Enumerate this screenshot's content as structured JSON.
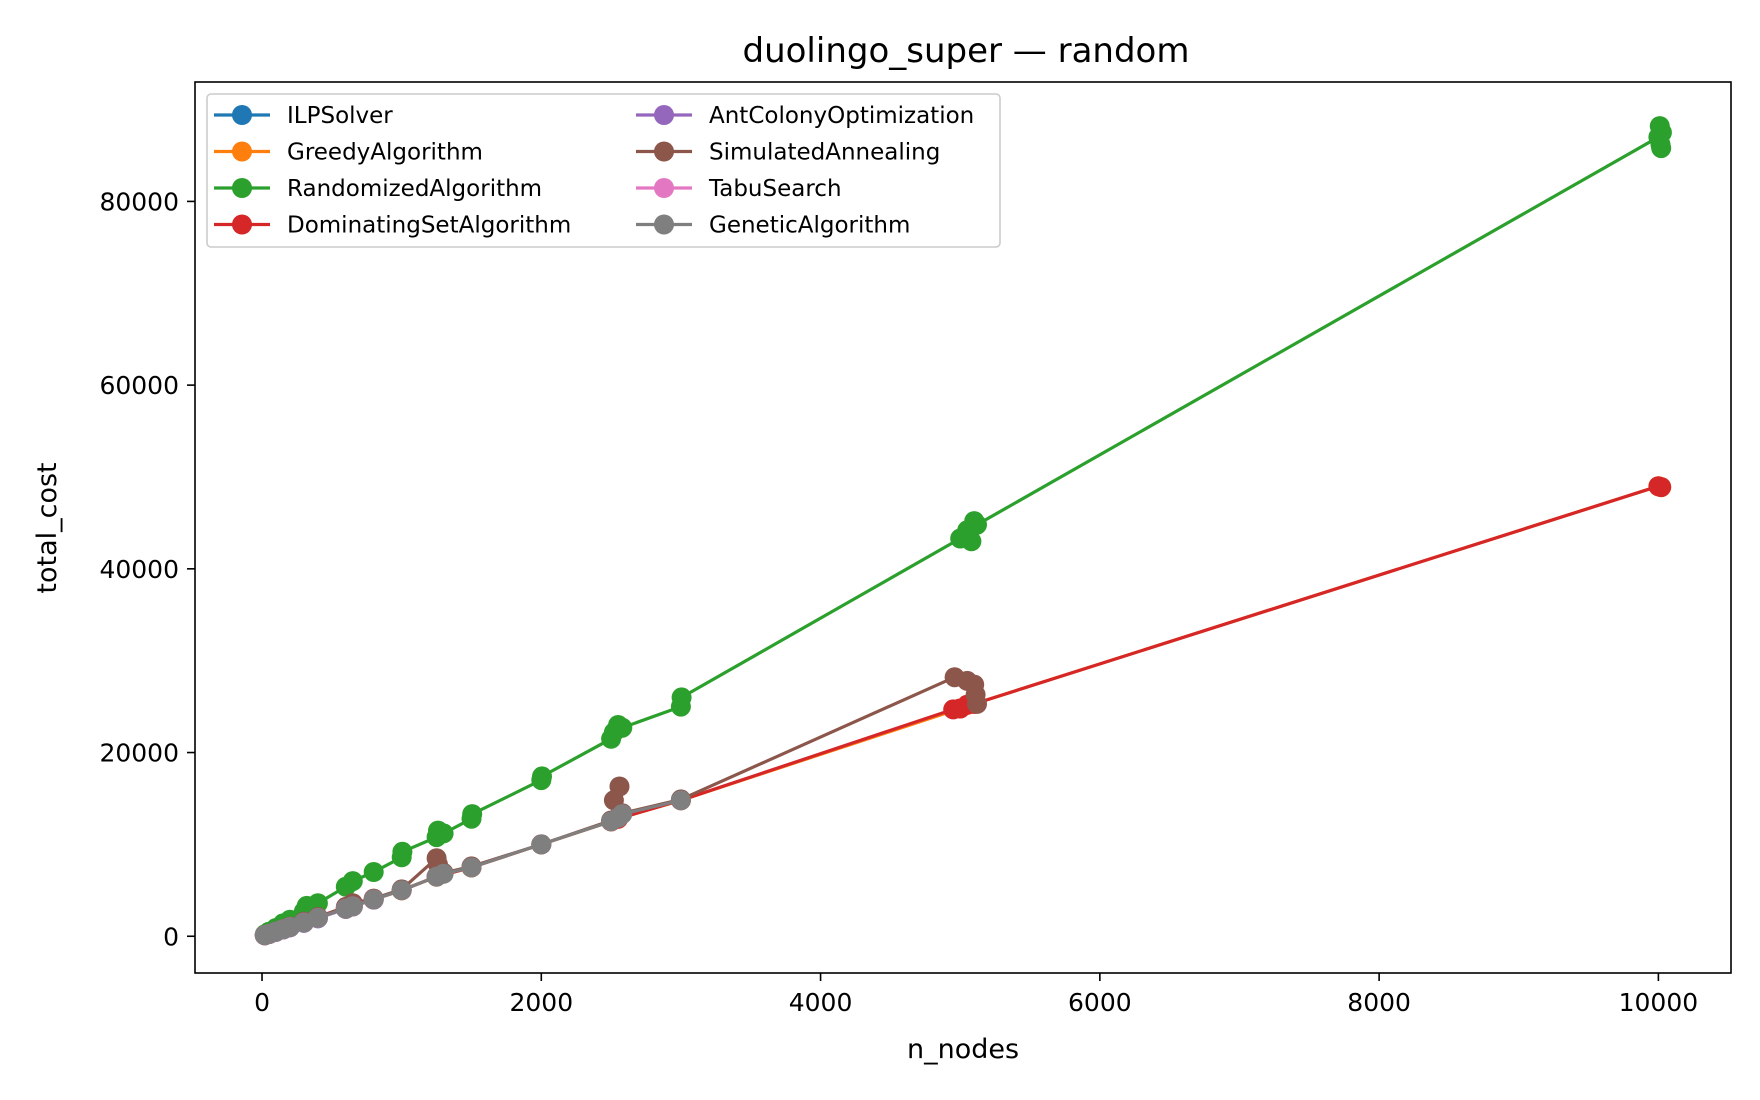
{
  "chart_data": {
    "type": "line",
    "title": "duolingo_super — random",
    "xlabel": "n_nodes",
    "ylabel": "total_cost",
    "xlim": [
      -480,
      10520
    ],
    "ylim": [
      -4000,
      93000
    ],
    "xticks": [
      0,
      2000,
      4000,
      6000,
      8000,
      10000
    ],
    "yticks": [
      0,
      20000,
      40000,
      60000,
      80000
    ],
    "xtick_labels": [
      "0",
      "2000",
      "4000",
      "6000",
      "8000",
      "10000"
    ],
    "ytick_labels": [
      "0",
      "20000",
      "40000",
      "60000",
      "80000"
    ],
    "grid": false,
    "legend_position": "top-left",
    "legend_columns": 2,
    "series": [
      {
        "name": "ILPSolver",
        "color": "#1f77b4",
        "points": [
          [
            20,
            100
          ],
          [
            50,
            250
          ],
          [
            100,
            500
          ],
          [
            150,
            740
          ],
          [
            200,
            990
          ],
          [
            300,
            1480
          ],
          [
            400,
            1970
          ]
        ]
      },
      {
        "name": "GreedyAlgorithm",
        "color": "#ff7f0e",
        "points": [
          [
            20,
            100
          ],
          [
            50,
            250
          ],
          [
            100,
            500
          ],
          [
            150,
            750
          ],
          [
            200,
            1000
          ],
          [
            300,
            1500
          ],
          [
            400,
            2000
          ],
          [
            600,
            3000
          ],
          [
            650,
            3250
          ],
          [
            800,
            4000
          ],
          [
            1000,
            5000
          ],
          [
            1250,
            6500
          ],
          [
            1500,
            7500
          ],
          [
            2000,
            10000
          ],
          [
            2500,
            12500
          ],
          [
            2550,
            12800
          ],
          [
            3000,
            14800
          ],
          [
            5000,
            24800
          ],
          [
            5050,
            25200
          ],
          [
            5100,
            25300
          ],
          [
            10000,
            49000
          ],
          [
            10020,
            48900
          ]
        ]
      },
      {
        "name": "RandomizedAlgorithm",
        "color": "#2ca02c",
        "points": [
          [
            20,
            200
          ],
          [
            50,
            500
          ],
          [
            100,
            900
          ],
          [
            150,
            1400
          ],
          [
            200,
            1800
          ],
          [
            300,
            2700
          ],
          [
            320,
            3300
          ],
          [
            400,
            3600
          ],
          [
            600,
            5400
          ],
          [
            650,
            6000
          ],
          [
            800,
            7000
          ],
          [
            1000,
            8600
          ],
          [
            1005,
            9200
          ],
          [
            1250,
            10800
          ],
          [
            1260,
            11500
          ],
          [
            1300,
            11200
          ],
          [
            1500,
            12800
          ],
          [
            1505,
            13300
          ],
          [
            2000,
            17000
          ],
          [
            2005,
            17400
          ],
          [
            2500,
            21500
          ],
          [
            2520,
            22200
          ],
          [
            2550,
            23000
          ],
          [
            2580,
            22700
          ],
          [
            3000,
            25000
          ],
          [
            3005,
            26000
          ],
          [
            5000,
            43300
          ],
          [
            5050,
            44200
          ],
          [
            5080,
            43000
          ],
          [
            5100,
            45200
          ],
          [
            5120,
            44800
          ],
          [
            10000,
            87000
          ],
          [
            10010,
            88200
          ],
          [
            10015,
            86200
          ],
          [
            10020,
            85800
          ],
          [
            10025,
            87500
          ]
        ]
      },
      {
        "name": "DominatingSetAlgorithm",
        "color": "#d62728",
        "points": [
          [
            20,
            100
          ],
          [
            50,
            250
          ],
          [
            100,
            500
          ],
          [
            150,
            750
          ],
          [
            200,
            1000
          ],
          [
            300,
            1500
          ],
          [
            400,
            2000
          ],
          [
            600,
            3000
          ],
          [
            650,
            3250
          ],
          [
            800,
            4000
          ],
          [
            1000,
            5000
          ],
          [
            1250,
            6500
          ],
          [
            1500,
            7500
          ],
          [
            2000,
            10000
          ],
          [
            2500,
            12500
          ],
          [
            2550,
            12800
          ],
          [
            3000,
            14800
          ],
          [
            4950,
            24700
          ],
          [
            5000,
            24800
          ],
          [
            5050,
            25200
          ],
          [
            5100,
            25300
          ],
          [
            10000,
            49000
          ],
          [
            10020,
            48900
          ]
        ]
      },
      {
        "name": "AntColonyOptimization",
        "color": "#9467bd",
        "points": [
          [
            20,
            100
          ],
          [
            50,
            250
          ],
          [
            100,
            500
          ],
          [
            150,
            740
          ],
          [
            200,
            990
          ],
          [
            300,
            1480
          ],
          [
            400,
            1970
          ],
          [
            600,
            2980
          ],
          [
            650,
            3240
          ],
          [
            800,
            3990
          ]
        ]
      },
      {
        "name": "SimulatedAnnealing",
        "color": "#8c564b",
        "points": [
          [
            20,
            110
          ],
          [
            50,
            260
          ],
          [
            100,
            520
          ],
          [
            150,
            780
          ],
          [
            200,
            1050
          ],
          [
            300,
            1600
          ],
          [
            400,
            2100
          ],
          [
            600,
            3200
          ],
          [
            650,
            3600
          ],
          [
            800,
            4100
          ],
          [
            1000,
            5100
          ],
          [
            1250,
            8500
          ],
          [
            1260,
            7800
          ],
          [
            1300,
            6900
          ],
          [
            1500,
            7600
          ],
          [
            2000,
            10000
          ],
          [
            2500,
            12600
          ],
          [
            2520,
            14800
          ],
          [
            2560,
            16300
          ],
          [
            2580,
            13400
          ],
          [
            3000,
            14900
          ],
          [
            4960,
            28200
          ],
          [
            5050,
            27800
          ],
          [
            5100,
            27400
          ],
          [
            5110,
            26300
          ],
          [
            5120,
            25300
          ]
        ]
      },
      {
        "name": "TabuSearch",
        "color": "#e377c2",
        "points": [
          [
            20,
            100
          ],
          [
            50,
            250
          ],
          [
            100,
            500
          ],
          [
            150,
            750
          ],
          [
            200,
            1000
          ],
          [
            300,
            1500
          ],
          [
            400,
            2000
          ],
          [
            600,
            3000
          ],
          [
            650,
            3250
          ],
          [
            800,
            4000
          ]
        ]
      },
      {
        "name": "GeneticAlgorithm",
        "color": "#7f7f7f",
        "points": [
          [
            20,
            100
          ],
          [
            50,
            250
          ],
          [
            100,
            500
          ],
          [
            150,
            750
          ],
          [
            200,
            1000
          ],
          [
            300,
            1500
          ],
          [
            400,
            2000
          ],
          [
            600,
            3000
          ],
          [
            650,
            3250
          ],
          [
            800,
            4000
          ],
          [
            1000,
            5000
          ],
          [
            1250,
            6500
          ],
          [
            1300,
            6800
          ],
          [
            1500,
            7500
          ],
          [
            2000,
            10000
          ],
          [
            2500,
            12500
          ],
          [
            2550,
            12900
          ],
          [
            2580,
            13300
          ],
          [
            3000,
            14800
          ]
        ]
      }
    ]
  }
}
